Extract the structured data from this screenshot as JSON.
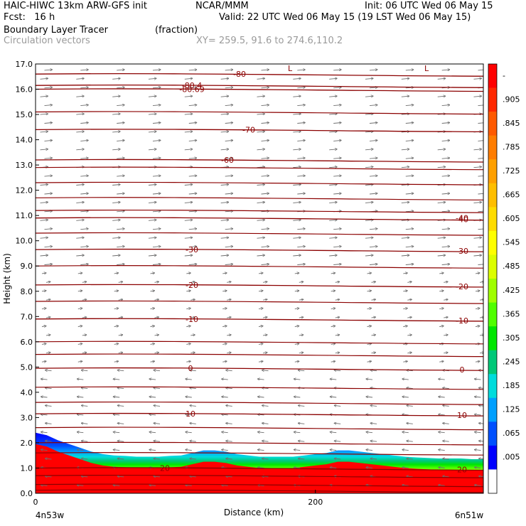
{
  "header": {
    "title_left": "HAIC-HIWC 13km ARW-GFS init",
    "title_mid": "NCAR/MMM",
    "init": "Init: 06 UTC Wed 06 May 15",
    "fcst": "Fcst:   16 h",
    "valid": "Valid: 22 UTC Wed 06 May 15 (19 LST Wed 06 May 15)",
    "field_name": "Boundary Layer Tracer",
    "field_unit": "(fraction)",
    "vector_name": "Circulation vectors",
    "xy": "XY= 259.5, 91.6 to 274.6,110.2"
  },
  "chart_data": {
    "type": "heatmap",
    "title": "Boundary Layer Tracer",
    "xlabel": "Distance (km)",
    "ylabel": "Height (km)",
    "xlim": [
      0,
      320
    ],
    "ylim": [
      0,
      17
    ],
    "x_tick_labels": [
      "0",
      "200"
    ],
    "x_tick_values": [
      0,
      200
    ],
    "x_end_labels": [
      "4n53w",
      "6n51w"
    ],
    "y_ticks": [
      "0.0",
      "1.0",
      "2.0",
      "3.0",
      "4.0",
      "5.0",
      "6.0",
      "7.0",
      "8.0",
      "9.0",
      "10.0",
      "11.0",
      "12.0",
      "13.0",
      "14.0",
      "15.0",
      "16.0",
      "17.0"
    ],
    "colorbar": {
      "labels": [
        "-",
        ".905",
        ".845",
        ".785",
        ".725",
        ".665",
        ".605",
        ".545",
        ".485",
        ".425",
        ".365",
        ".305",
        ".245",
        ".185",
        ".125",
        ".065",
        ".005"
      ],
      "colors": [
        "#ff0000",
        "#ff2800",
        "#ff5a00",
        "#ff7d00",
        "#ffa000",
        "#ffbe00",
        "#ffdc00",
        "#ffff00",
        "#dcff00",
        "#a0ff00",
        "#50ff00",
        "#00e600",
        "#00c878",
        "#00dcdc",
        "#00a0ff",
        "#0050ff",
        "#0000ff",
        "#ffffff"
      ]
    },
    "tracer_top": {
      "x": [
        0,
        8,
        16,
        24,
        32,
        40,
        48,
        56,
        64,
        72,
        80,
        88,
        96,
        104,
        112,
        120,
        128,
        136,
        144,
        152,
        160,
        168,
        176,
        184,
        192,
        200,
        208,
        216,
        224,
        232,
        240,
        248,
        256,
        264,
        272,
        280,
        288,
        296,
        304,
        312,
        320
      ],
      "height_km": [
        2.4,
        2.3,
        2.1,
        1.95,
        1.8,
        1.65,
        1.55,
        1.5,
        1.48,
        1.45,
        1.45,
        1.45,
        1.48,
        1.5,
        1.6,
        1.7,
        1.7,
        1.65,
        1.55,
        1.5,
        1.45,
        1.45,
        1.45,
        1.45,
        1.5,
        1.55,
        1.6,
        1.7,
        1.7,
        1.65,
        1.6,
        1.55,
        1.5,
        1.45,
        1.42,
        1.4,
        1.38,
        1.38,
        1.38,
        1.35,
        1.35
      ]
    },
    "contour_lines": [
      {
        "height_km": 16.15,
        "label": "-80.4"
      },
      {
        "height_km": 16.0,
        "label": "-80.69"
      },
      {
        "height_km": 16.6,
        "label": "-80"
      },
      {
        "height_km": 14.4,
        "label": "-70"
      },
      {
        "height_km": 13.2,
        "label": "-60"
      },
      {
        "height_km": 10.9,
        "label": "-40"
      },
      {
        "height_km": 9.65,
        "label": "-30"
      },
      {
        "height_km": 8.25,
        "label": "-20"
      },
      {
        "height_km": 6.9,
        "label": "-10"
      },
      {
        "height_km": 4.95,
        "label": "0"
      },
      {
        "height_km": 3.15,
        "label": "10"
      },
      {
        "height_km": 1.0,
        "label": "20"
      }
    ],
    "plain_contour_heights_km": [
      15.1,
      12.9,
      12.3,
      11.7,
      11.2,
      10.3,
      9.0,
      7.6,
      6.0,
      5.5,
      4.2,
      3.6,
      2.6,
      2.0,
      1.6,
      0.7,
      0.35,
      0.12
    ],
    "extrema_labels": [
      "L",
      "L"
    ],
    "vectors": {
      "upper_direction": "east",
      "lower_direction": "west",
      "reversal_height_km": 5.0
    }
  }
}
